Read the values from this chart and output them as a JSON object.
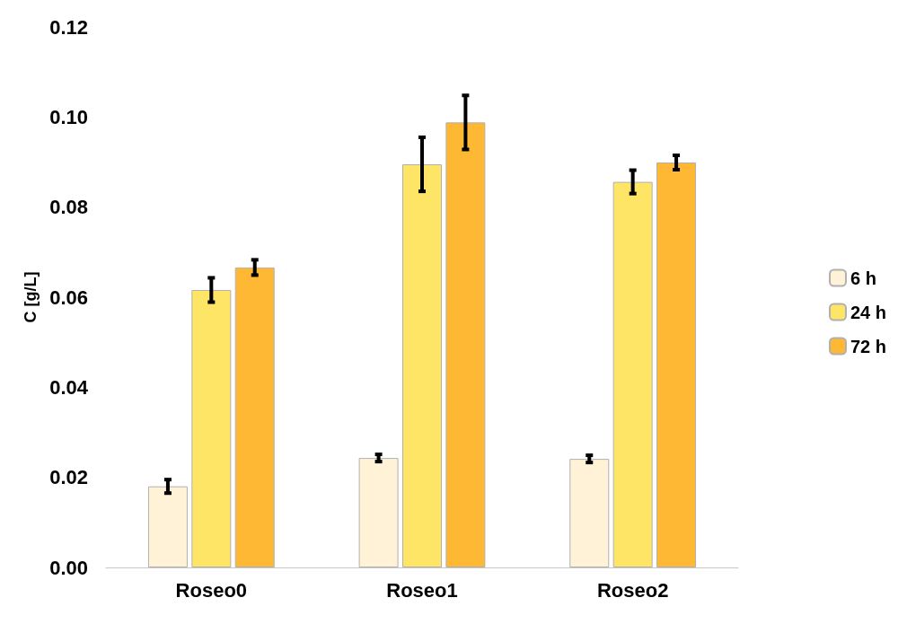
{
  "chart_data": {
    "type": "bar",
    "ylabel": "C [g/L]",
    "categories": [
      "Roseo0",
      "Roseo1",
      "Roseo2"
    ],
    "series": [
      {
        "name": "6 h",
        "color": "#fff2d6",
        "values": [
          0.018,
          0.0243,
          0.0241
        ],
        "errors": [
          0.0015,
          0.0008,
          0.0008
        ]
      },
      {
        "name": "24 h",
        "color": "#ffe566",
        "values": [
          0.0616,
          0.0895,
          0.0856
        ],
        "errors": [
          0.0027,
          0.006,
          0.0026
        ]
      },
      {
        "name": "72 h",
        "color": "#ffb833",
        "values": [
          0.0666,
          0.0988,
          0.0899
        ],
        "errors": [
          0.0017,
          0.006,
          0.0016
        ]
      }
    ],
    "ylim": [
      0,
      0.12
    ],
    "yticks": [
      {
        "value": 0,
        "label": "0.00"
      },
      {
        "value": 0.02,
        "label": "0.02"
      },
      {
        "value": 0.04,
        "label": "0.04"
      },
      {
        "value": 0.06,
        "label": "0.06"
      },
      {
        "value": 0.08,
        "label": "0.08"
      },
      {
        "value": 0.1,
        "label": "0.10"
      },
      {
        "value": 0.12,
        "label": "0.12"
      }
    ],
    "grid": false,
    "legend": "right"
  }
}
